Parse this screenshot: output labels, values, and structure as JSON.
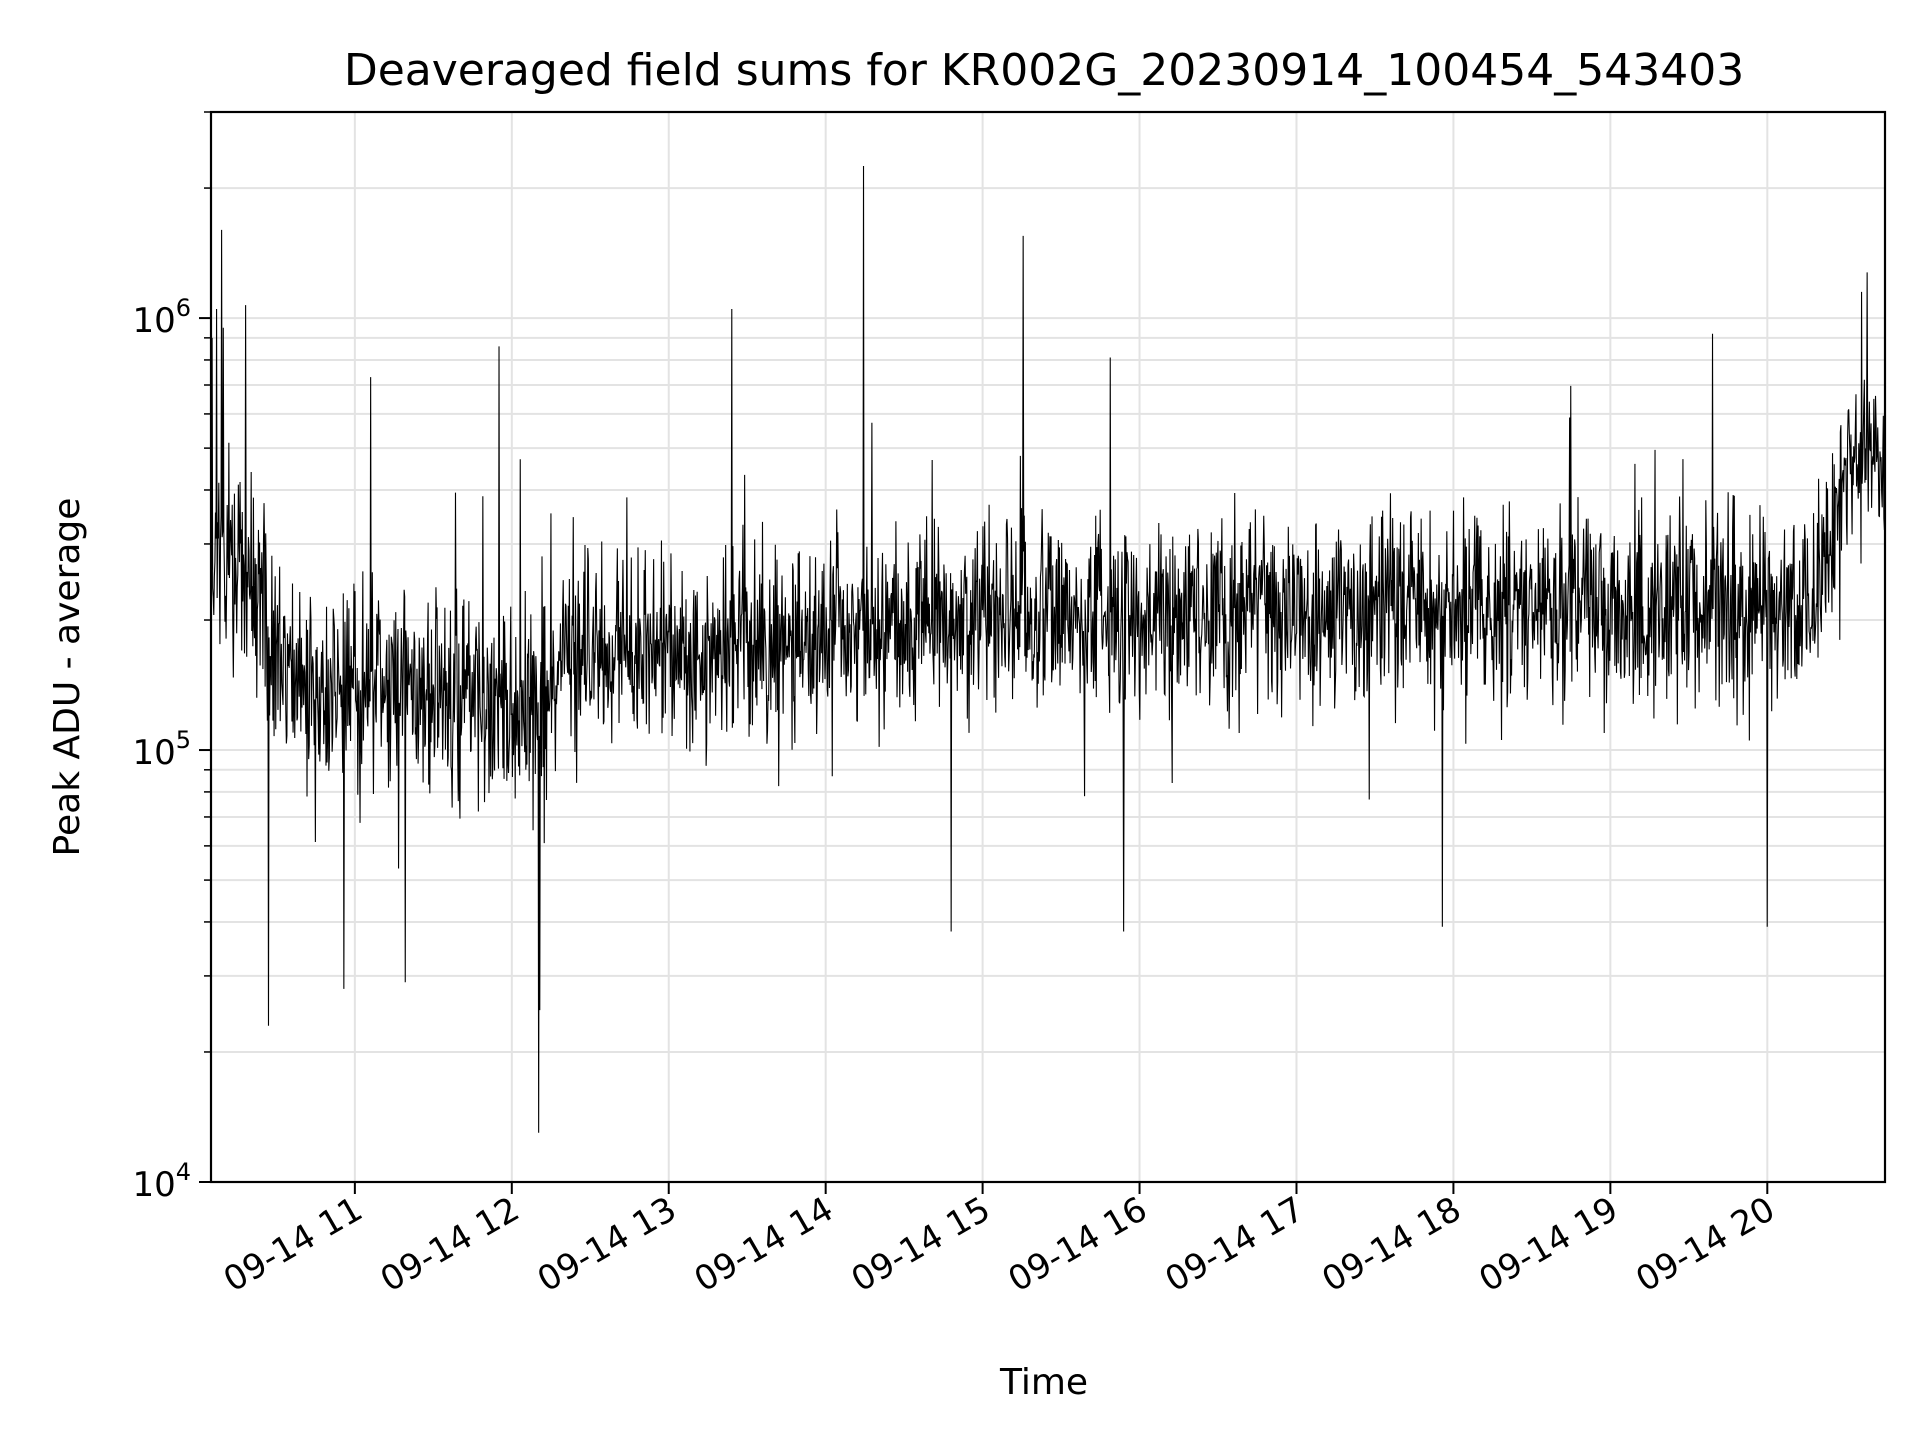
{
  "chart_data": {
    "type": "line",
    "title": "Deaveraged field sums for KR002G_20230914_100454_543403",
    "xlabel": "Time",
    "ylabel": "Peak ADU - average",
    "yscale": "log",
    "ylim": [
      10000,
      3000000
    ],
    "xlim": [
      "09-14 10:05",
      "09-14 20:45"
    ],
    "grid": true,
    "line_color": "#000000",
    "grid_color": "#e3e3e3",
    "x_ticks": [
      {
        "t": 11,
        "label": "09-14 11"
      },
      {
        "t": 12,
        "label": "09-14 12"
      },
      {
        "t": 13,
        "label": "09-14 13"
      },
      {
        "t": 14,
        "label": "09-14 14"
      },
      {
        "t": 15,
        "label": "09-14 15"
      },
      {
        "t": 16,
        "label": "09-14 16"
      },
      {
        "t": 17,
        "label": "09-14 17"
      },
      {
        "t": 18,
        "label": "09-14 18"
      },
      {
        "t": 19,
        "label": "09-14 19"
      },
      {
        "t": 20,
        "label": "09-14 20"
      }
    ],
    "y_ticks": [
      {
        "value": 10000,
        "base": "10",
        "exp": "4"
      },
      {
        "value": 100000,
        "base": "10",
        "exp": "5"
      },
      {
        "value": 1000000,
        "base": "10",
        "exp": "6"
      }
    ],
    "envelope": [
      {
        "t": 10.08,
        "median": 300000,
        "spread": 0.3
      },
      {
        "t": 10.4,
        "median": 220000,
        "spread": 0.3
      },
      {
        "t": 10.7,
        "median": 130000,
        "spread": 0.3
      },
      {
        "t": 11.5,
        "median": 140000,
        "spread": 0.28
      },
      {
        "t": 12.1,
        "median": 130000,
        "spread": 0.3
      },
      {
        "t": 12.5,
        "median": 170000,
        "spread": 0.26
      },
      {
        "t": 14.0,
        "median": 180000,
        "spread": 0.26
      },
      {
        "t": 15.0,
        "median": 210000,
        "spread": 0.26
      },
      {
        "t": 16.5,
        "median": 200000,
        "spread": 0.26
      },
      {
        "t": 18.0,
        "median": 220000,
        "spread": 0.26
      },
      {
        "t": 20.3,
        "median": 220000,
        "spread": 0.26
      },
      {
        "t": 20.5,
        "median": 450000,
        "spread": 0.22
      },
      {
        "t": 20.75,
        "median": 500000,
        "spread": 0.18
      }
    ],
    "spikes": [
      {
        "t": 10.15,
        "value": 1600000
      },
      {
        "t": 10.12,
        "value": 1050000
      },
      {
        "t": 10.16,
        "value": 950000
      },
      {
        "t": 10.09,
        "value": 900000
      },
      {
        "t": 10.45,
        "value": 23000
      },
      {
        "t": 10.93,
        "value": 28000
      },
      {
        "t": 11.1,
        "value": 730000
      },
      {
        "t": 11.32,
        "value": 29000
      },
      {
        "t": 11.92,
        "value": 860000
      },
      {
        "t": 12.17,
        "value": 13000
      },
      {
        "t": 12.18,
        "value": 25000
      },
      {
        "t": 13.4,
        "value": 1050000
      },
      {
        "t": 14.24,
        "value": 2250000
      },
      {
        "t": 14.8,
        "value": 38000
      },
      {
        "t": 15.26,
        "value": 1550000
      },
      {
        "t": 15.9,
        "value": 38000
      },
      {
        "t": 17.93,
        "value": 39000
      },
      {
        "t": 19.65,
        "value": 920000
      },
      {
        "t": 20.0,
        "value": 39000
      },
      {
        "t": 20.6,
        "value": 1150000
      }
    ]
  }
}
